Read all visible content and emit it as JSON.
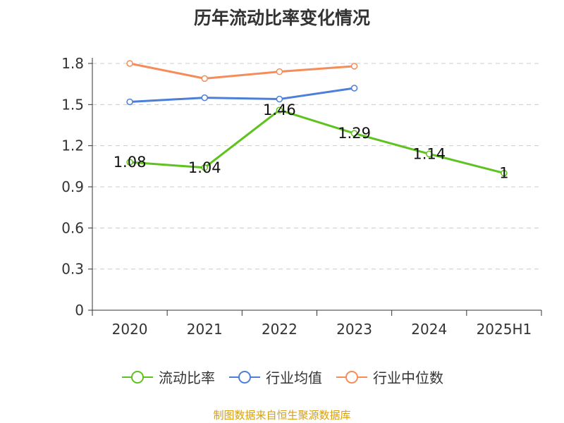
{
  "title": "历年流动比率变化情况",
  "source": "制图数据来自恒生聚源数据库",
  "colors": {
    "source_text": "#d4a017",
    "axis": "#333333",
    "grid": "#cccccc"
  },
  "chart_data": {
    "type": "line",
    "title": "历年流动比率变化情况",
    "categories": [
      "2020",
      "2021",
      "2022",
      "2023",
      "2024",
      "2025H1"
    ],
    "ylim": [
      0,
      1.8
    ],
    "yticks": [
      "0",
      "0.3",
      "0.6",
      "0.9",
      "1.2",
      "1.5",
      "1.8"
    ],
    "grid": "horizontal dashed",
    "legend_position": "bottom-center",
    "series": [
      {
        "name": "流动比率",
        "color": "#5ec21f",
        "values": [
          1.08,
          1.04,
          1.46,
          1.29,
          1.14,
          1.0
        ],
        "labels": [
          "1.08",
          "1.04",
          "1.46",
          "1.29",
          "1.14",
          "1"
        ]
      },
      {
        "name": "行业均值",
        "color": "#4d7fd8",
        "values": [
          1.52,
          1.55,
          1.54,
          1.62,
          null,
          null
        ]
      },
      {
        "name": "行业中位数",
        "color": "#f58d5a",
        "values": [
          1.8,
          1.69,
          1.74,
          1.78,
          null,
          null
        ]
      }
    ]
  }
}
